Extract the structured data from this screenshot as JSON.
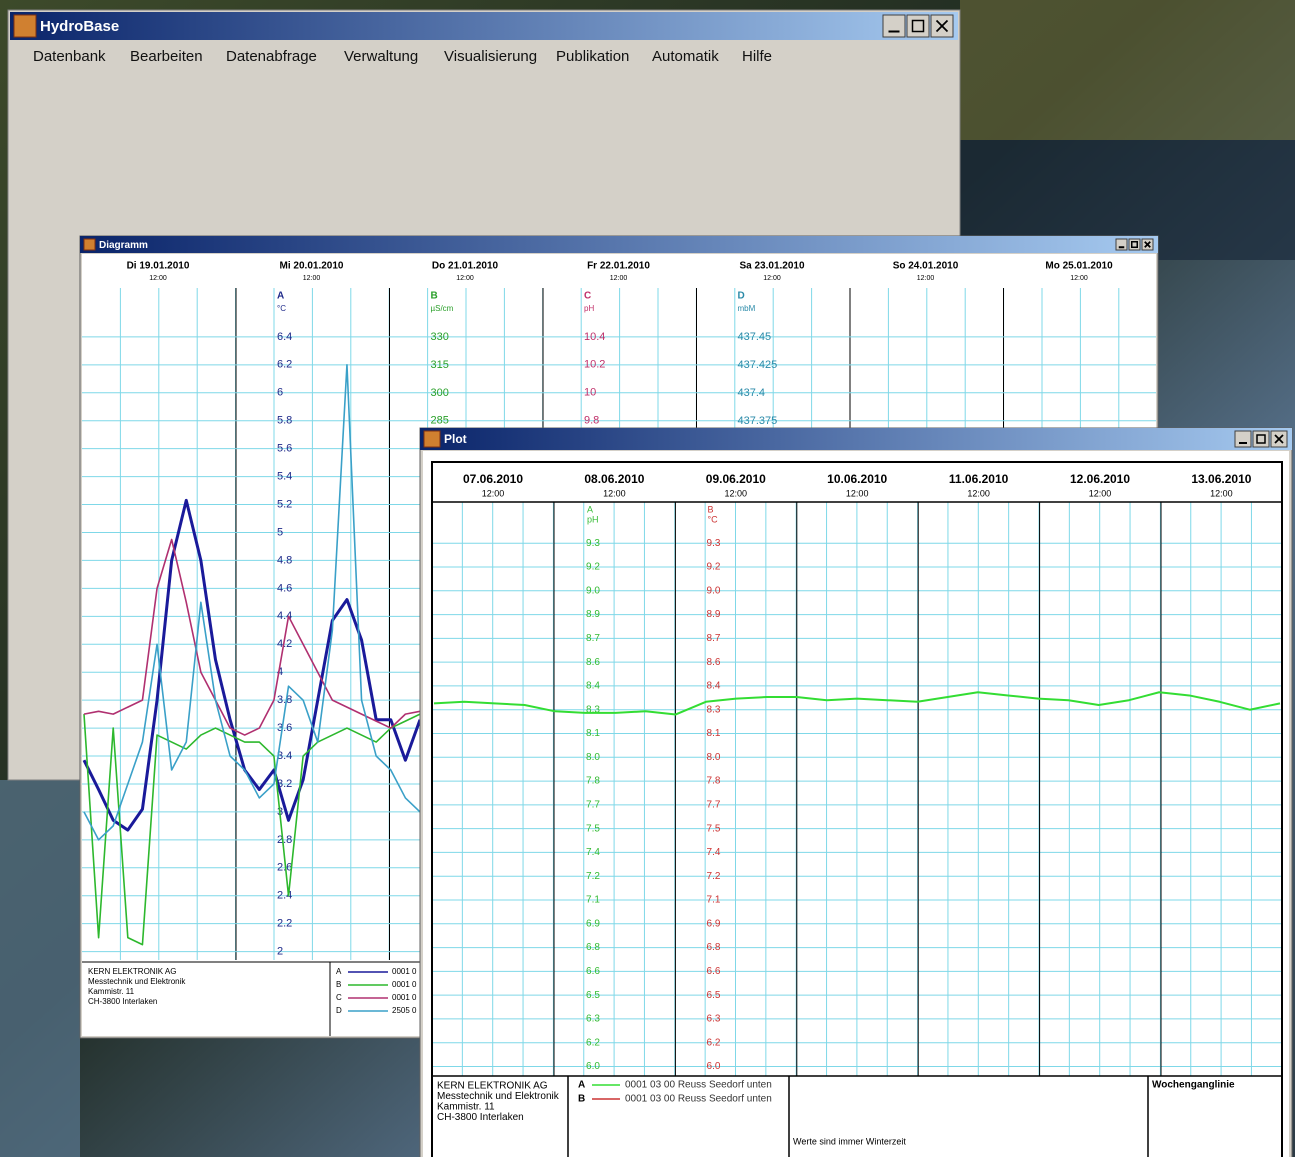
{
  "main_window": {
    "title": "HydroBase",
    "menu": [
      "Datenbank",
      "Bearbeiten",
      "Datenabfrage",
      "Verwaltung",
      "Visualisierung",
      "Publikation",
      "Automatik",
      "Hilfe"
    ]
  },
  "diagram_window": {
    "title": "Diagramm",
    "days": [
      {
        "day": "Di 19.01.2010",
        "time": "12:00"
      },
      {
        "day": "Mi 20.01.2010",
        "time": "12:00"
      },
      {
        "day": "Do 21.01.2010",
        "time": "12:00"
      },
      {
        "day": "Fr 22.01.2010",
        "time": "12:00"
      },
      {
        "day": "Sa 23.01.2010",
        "time": "12:00"
      },
      {
        "day": "So 24.01.2010",
        "time": "12:00"
      },
      {
        "day": "Mo 25.01.2010",
        "time": "12:00"
      }
    ],
    "chart_data": {
      "type": "line",
      "axes": [
        {
          "name": "A",
          "unit": "°C",
          "color": "#1e2a8a",
          "ylim": [
            1.94,
            6.75
          ],
          "yticks": [
            6.4,
            6.2,
            6,
            5.8,
            5.6,
            5.4,
            5.2,
            5,
            4.8,
            4.6,
            4.4,
            4.2,
            4,
            3.8,
            3.6,
            3.4,
            3.2,
            3,
            2.8,
            2.6,
            2.4,
            2.2,
            2
          ]
        },
        {
          "name": "B",
          "unit": "µS/cm",
          "color": "#2aa02a",
          "ylim": [
            -4.4,
            356.3
          ],
          "yticks": [
            330,
            315,
            300,
            285
          ]
        },
        {
          "name": "C",
          "unit": "pH",
          "color": "#c0306a",
          "ylim": [
            5.94,
            10.75
          ],
          "yticks": [
            10.4,
            10.2,
            10,
            9.8
          ]
        },
        {
          "name": "D",
          "unit": "mbM",
          "color": "#2a8aa8",
          "ylim": [
            436.893,
            437.494
          ],
          "yticks": [
            437.45,
            437.425,
            437.4,
            437.375
          ]
        }
      ],
      "series": [
        {
          "name": "A",
          "description": "0001 0",
          "color": "#1a1a9a",
          "values": [
            3.37,
            3.16,
            2.94,
            2.87,
            3.02,
            3.8,
            4.8,
            5.23,
            4.8,
            4.09,
            3.66,
            3.3,
            3.16,
            3.3,
            2.94,
            3.23,
            3.8,
            4.37,
            4.52,
            4.23,
            3.66,
            3.66,
            3.37,
            3.66
          ]
        },
        {
          "name": "B",
          "description": "0001 0",
          "color": "#2db82d",
          "values": [
            3.7,
            2.1,
            3.6,
            2.1,
            2.05,
            3.55,
            3.5,
            3.45,
            3.55,
            3.6,
            3.55,
            3.5,
            3.5,
            3.4,
            2.4,
            3.4,
            3.5,
            3.55,
            3.6,
            3.55,
            3.5,
            3.6,
            3.65,
            3.7
          ]
        },
        {
          "name": "C",
          "description": "0001 0",
          "color": "#b03070",
          "values": [
            3.7,
            3.72,
            3.7,
            3.75,
            3.8,
            4.6,
            4.95,
            4.5,
            4.0,
            3.8,
            3.6,
            3.55,
            3.6,
            3.8,
            4.4,
            4.2,
            4.0,
            3.8,
            3.75,
            3.7,
            3.65,
            3.6,
            3.7,
            3.72
          ]
        },
        {
          "name": "D",
          "description": "2505 0",
          "color": "#3aa0c8",
          "values": [
            3.0,
            2.8,
            2.9,
            3.2,
            3.5,
            4.2,
            3.3,
            3.5,
            4.5,
            3.8,
            3.4,
            3.3,
            3.1,
            3.2,
            3.9,
            3.8,
            3.5,
            4.3,
            6.2,
            3.8,
            3.4,
            3.3,
            3.1,
            3.0
          ]
        }
      ]
    },
    "footer": {
      "company": [
        "KERN ELEKTRONIK AG",
        "Messtechnik und Elektronik",
        "Kammistr. 11",
        "CH-3800 Interlaken"
      ]
    }
  },
  "plot_window": {
    "title": "Plot",
    "days": [
      {
        "day": "07.06.2010",
        "time": "12:00"
      },
      {
        "day": "08.06.2010",
        "time": "12:00"
      },
      {
        "day": "09.06.2010",
        "time": "12:00"
      },
      {
        "day": "10.06.2010",
        "time": "12:00"
      },
      {
        "day": "11.06.2010",
        "time": "12:00"
      },
      {
        "day": "12.06.2010",
        "time": "12:00"
      },
      {
        "day": "13.06.2010",
        "time": "12:00"
      }
    ],
    "chart_data": {
      "type": "line",
      "axes": [
        {
          "name": "A",
          "unit": "pH",
          "color": "#33bb33",
          "ylim": [
            5.94,
            9.56
          ],
          "yticks": [
            {
              "value": 6,
              "label": "6.0"
            },
            {
              "value": 6.15,
              "label": "6.2"
            },
            6.3,
            {
              "value": 6.45,
              "label": "6.5"
            },
            6.6,
            {
              "value": 6.75,
              "label": "6.8"
            },
            6.9,
            {
              "value": 7.05,
              "label": "7.1"
            },
            7.2,
            {
              "value": 7.35,
              "label": "7.4"
            },
            7.5,
            {
              "value": 7.65,
              "label": "7.7"
            },
            7.8,
            {
              "value": 7.95,
              "label": "8.0"
            },
            8.1,
            {
              "value": 8.25,
              "label": "8.3"
            },
            8.4,
            {
              "value": 8.55,
              "label": "8.6"
            },
            8.7,
            {
              "value": 8.85,
              "label": "8.9"
            },
            {
              "value": 9,
              "label": "9.0"
            },
            {
              "value": 9.15,
              "label": "9.2"
            },
            9.3
          ]
        },
        {
          "name": "B",
          "unit": "°C",
          "color": "#cc3333",
          "ylim": [
            5.94,
            9.56
          ],
          "yticks": [
            {
              "value": 6,
              "label": "6.0"
            },
            {
              "value": 6.15,
              "label": "6.2"
            },
            6.3,
            {
              "value": 6.45,
              "label": "6.5"
            },
            6.6,
            {
              "value": 6.75,
              "label": "6.8"
            },
            6.9,
            {
              "value": 7.05,
              "label": "7.1"
            },
            7.2,
            {
              "value": 7.35,
              "label": "7.4"
            },
            7.5,
            {
              "value": 7.65,
              "label": "7.7"
            },
            7.8,
            {
              "value": 7.95,
              "label": "8.0"
            },
            8.1,
            {
              "value": 8.25,
              "label": "8.3"
            },
            8.4,
            {
              "value": 8.55,
              "label": "8.6"
            },
            8.7,
            {
              "value": 8.85,
              "label": "8.9"
            },
            {
              "value": 9,
              "label": "9.0"
            },
            {
              "value": 9.15,
              "label": "9.2"
            },
            9.3
          ]
        }
      ],
      "series": [
        {
          "name": "A",
          "description": "0001 03 00 Reuss Seedorf unten",
          "color": "#33dd33",
          "values": [
            8.29,
            8.3,
            8.29,
            8.28,
            8.24,
            8.23,
            8.23,
            8.24,
            8.22,
            8.3,
            8.32,
            8.33,
            8.33,
            8.31,
            8.32,
            8.31,
            8.3,
            8.33,
            8.36,
            8.34,
            8.32,
            8.31,
            8.28,
            8.31,
            8.36,
            8.34,
            8.3,
            8.25,
            8.29
          ]
        },
        {
          "name": "B",
          "description": "0001 03 00 Reuss Seedorf unten",
          "color": "#cc3333"
        }
      ]
    },
    "footer": {
      "company": [
        "KERN ELEKTRONIK AG",
        "Messtechnik und Elektronik",
        "Kammistr. 11",
        "CH-3800 Interlaken"
      ],
      "note": "Werte sind immer Winterzeit",
      "title": "Wochenganglinie"
    }
  }
}
